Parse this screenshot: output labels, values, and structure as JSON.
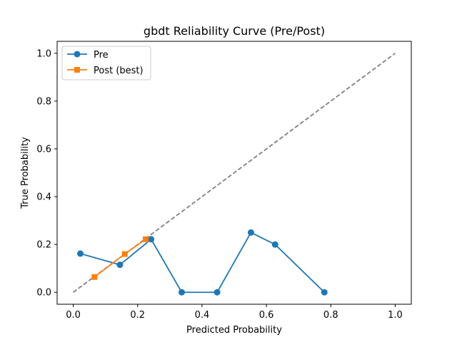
{
  "chart_data": {
    "type": "line",
    "title": "gbdt Reliability Curve (Pre/Post)",
    "xlabel": "Predicted Probability",
    "ylabel": "True Probability",
    "xlim": [
      -0.05,
      1.05
    ],
    "ylim": [
      -0.05,
      1.05
    ],
    "xticks": [
      0.0,
      0.2,
      0.4,
      0.6,
      0.8,
      1.0
    ],
    "yticks": [
      0.0,
      0.2,
      0.4,
      0.6,
      0.8,
      1.0
    ],
    "tick_labels": [
      "0.0",
      "0.2",
      "0.4",
      "0.6",
      "0.8",
      "1.0"
    ],
    "grid": false,
    "legend_position": "top-left",
    "reference_line": {
      "x": [
        0.0,
        1.0
      ],
      "y": [
        0.0,
        1.0
      ],
      "color": "#808080",
      "style": "dashed"
    },
    "series": [
      {
        "name": "Pre",
        "color": "#1f77b4",
        "marker": "circle",
        "x": [
          0.022,
          0.145,
          0.242,
          0.337,
          0.447,
          0.552,
          0.627,
          0.78
        ],
        "y": [
          0.162,
          0.115,
          0.222,
          0.0,
          0.0,
          0.25,
          0.2,
          0.0
        ]
      },
      {
        "name": "Post (best)",
        "color": "#ff7f0e",
        "marker": "square",
        "x": [
          0.066,
          0.16,
          0.225
        ],
        "y": [
          0.064,
          0.16,
          0.222
        ]
      }
    ]
  }
}
